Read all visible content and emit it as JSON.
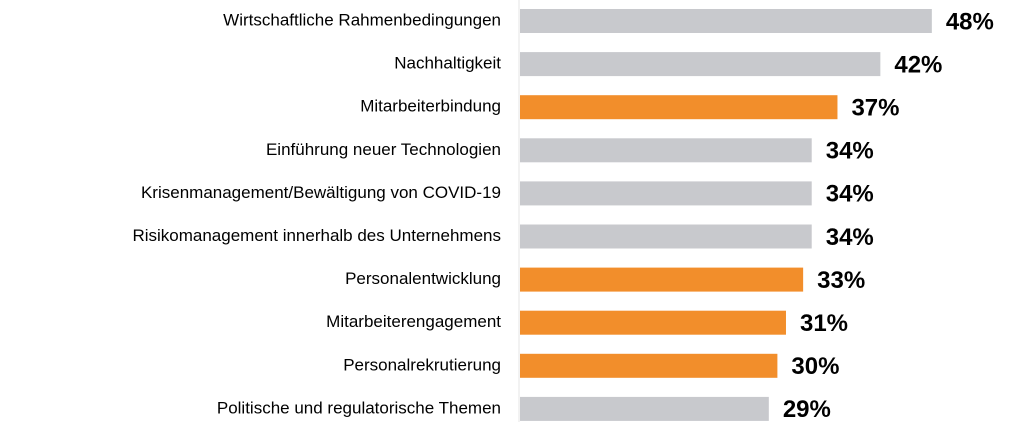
{
  "chart_data": {
    "type": "barh",
    "categories": [
      "Wirtschaftliche Rahmenbedingungen",
      "Nachhaltigkeit",
      "Mitarbeiterbindung",
      "Einführung neuer Technologien",
      "Krisenmanagement/Bewältigung von COVID-19",
      "Risikomanagement innerhalb des Unternehmens",
      "Personalentwicklung",
      "Mitarbeiterengagement",
      "Personalrekrutierung",
      "Politische und regulatorische Themen"
    ],
    "values": [
      48,
      42,
      37,
      34,
      34,
      34,
      33,
      31,
      30,
      29
    ],
    "value_labels": [
      "48%",
      "42%",
      "37%",
      "34%",
      "34%",
      "34%",
      "33%",
      "31%",
      "30%",
      "29%"
    ],
    "colors": [
      "#c8c9cd",
      "#c8c9cd",
      "#f28e2b",
      "#c8c9cd",
      "#c8c9cd",
      "#c8c9cd",
      "#f28e2b",
      "#f28e2b",
      "#f28e2b",
      "#c8c9cd"
    ]
  }
}
